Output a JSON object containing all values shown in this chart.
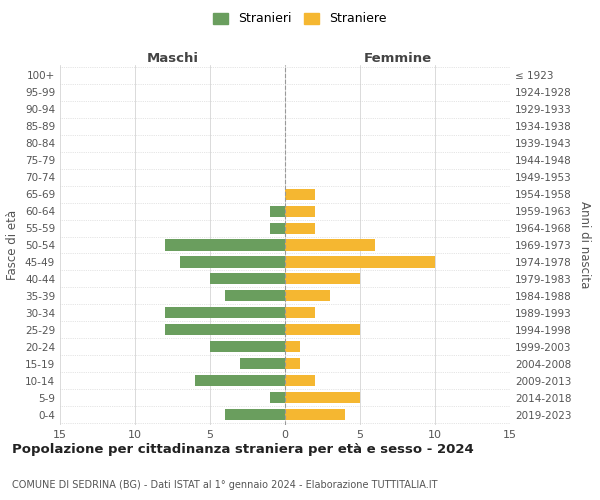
{
  "age_groups": [
    "0-4",
    "5-9",
    "10-14",
    "15-19",
    "20-24",
    "25-29",
    "30-34",
    "35-39",
    "40-44",
    "45-49",
    "50-54",
    "55-59",
    "60-64",
    "65-69",
    "70-74",
    "75-79",
    "80-84",
    "85-89",
    "90-94",
    "95-99",
    "100+"
  ],
  "birth_years": [
    "2019-2023",
    "2014-2018",
    "2009-2013",
    "2004-2008",
    "1999-2003",
    "1994-1998",
    "1989-1993",
    "1984-1988",
    "1979-1983",
    "1974-1978",
    "1969-1973",
    "1964-1968",
    "1959-1963",
    "1954-1958",
    "1949-1953",
    "1944-1948",
    "1939-1943",
    "1934-1938",
    "1929-1933",
    "1924-1928",
    "≤ 1923"
  ],
  "males": [
    4,
    1,
    6,
    3,
    5,
    8,
    8,
    4,
    5,
    7,
    8,
    1,
    1,
    0,
    0,
    0,
    0,
    0,
    0,
    0,
    0
  ],
  "females": [
    4,
    5,
    2,
    1,
    1,
    5,
    2,
    3,
    5,
    10,
    6,
    2,
    2,
    2,
    0,
    0,
    0,
    0,
    0,
    0,
    0
  ],
  "male_color": "#6a9e5e",
  "female_color": "#f5b731",
  "center_line_color": "#999999",
  "grid_color": "#cccccc",
  "title": "Popolazione per cittadinanza straniera per età e sesso - 2024",
  "subtitle": "COMUNE DI SEDRINA (BG) - Dati ISTAT al 1° gennaio 2024 - Elaborazione TUTTITALIA.IT",
  "xlabel_left": "Maschi",
  "xlabel_right": "Femmine",
  "ylabel_left": "Fasce di età",
  "ylabel_right": "Anni di nascita",
  "legend_male": "Stranieri",
  "legend_female": "Straniere",
  "xlim": 15,
  "background_color": "#ffffff"
}
